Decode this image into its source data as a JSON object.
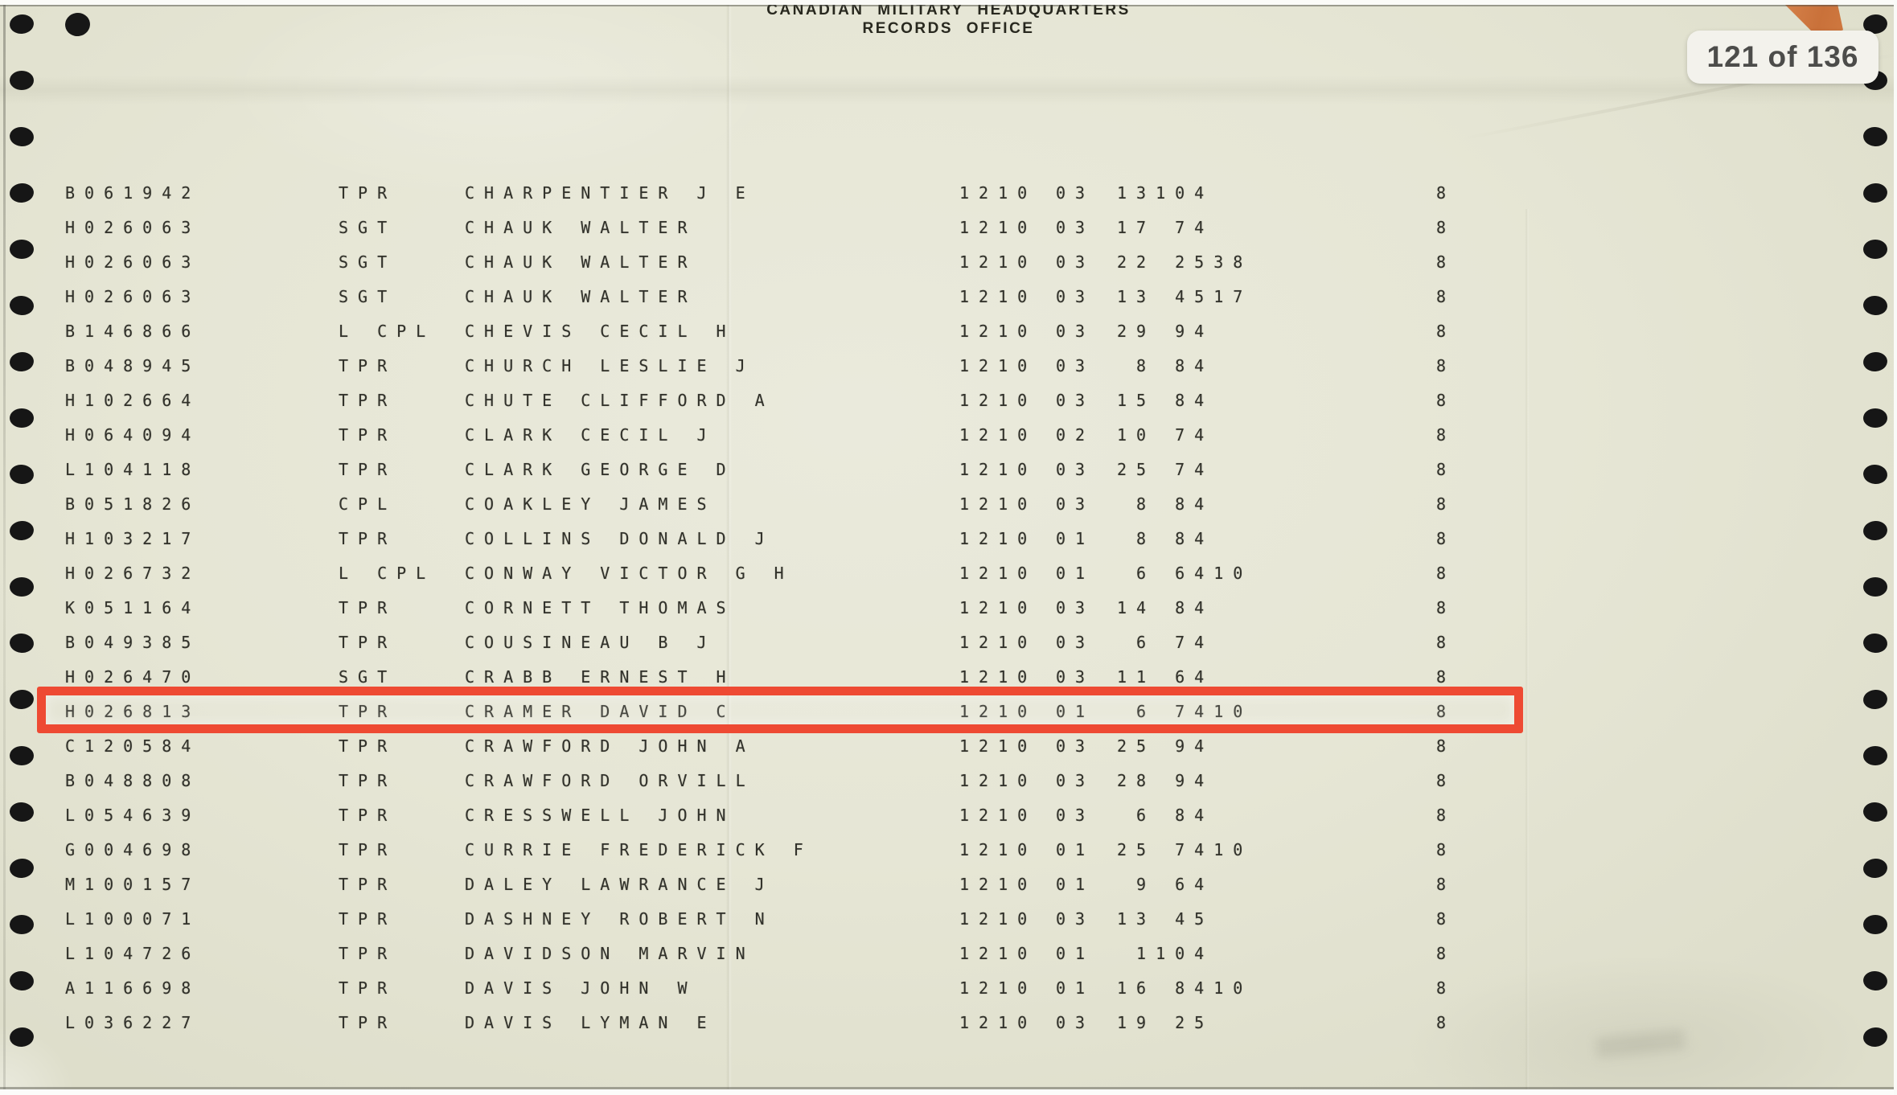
{
  "document": {
    "header_line1": "CANADIAN  MILITARY  HEADQUARTERS",
    "header_line2": "RECORDS  OFFICE"
  },
  "viewer": {
    "page_indicator": "121 of 136"
  },
  "colors": {
    "paper": "#e6e6d5",
    "ink": "#31312a",
    "highlight_red": "#ee4a33",
    "badge_bg": "#f3f2ec",
    "badge_text": "#4c4c4a",
    "corner_orange": "#cf7a41",
    "punch_hole": "#161616"
  },
  "table": {
    "highlighted_row_index": 15,
    "rows": [
      {
        "service_number": "B061942",
        "rank": "TPR",
        "name": "CHARPENTIER J E",
        "col1": "1210",
        "col2": "03",
        "col3": "13104",
        "col4": "8"
      },
      {
        "service_number": "H026063",
        "rank": "SGT",
        "name": "CHAUK WALTER",
        "col1": "1210",
        "col2": "03",
        "col3": "17 74",
        "col4": "8"
      },
      {
        "service_number": "H026063",
        "rank": "SGT",
        "name": "CHAUK WALTER",
        "col1": "1210",
        "col2": "03",
        "col3": "22 2538",
        "col4": "8"
      },
      {
        "service_number": "H026063",
        "rank": "SGT",
        "name": "CHAUK WALTER",
        "col1": "1210",
        "col2": "03",
        "col3": "13 4517",
        "col4": "8"
      },
      {
        "service_number": "B146866",
        "rank": "L CPL",
        "name": "CHEVIS CECIL H",
        "col1": "1210",
        "col2": "03",
        "col3": "29 94",
        "col4": "8"
      },
      {
        "service_number": "B048945",
        "rank": "TPR",
        "name": "CHURCH LESLIE J",
        "col1": "1210",
        "col2": "03",
        "col3": " 8 84",
        "col4": "8"
      },
      {
        "service_number": "H102664",
        "rank": "TPR",
        "name": "CHUTE CLIFFORD A",
        "col1": "1210",
        "col2": "03",
        "col3": "15 84",
        "col4": "8"
      },
      {
        "service_number": "H064094",
        "rank": "TPR",
        "name": "CLARK CECIL J",
        "col1": "1210",
        "col2": "02",
        "col3": "10 74",
        "col4": "8"
      },
      {
        "service_number": "L104118",
        "rank": "TPR",
        "name": "CLARK GEORGE D",
        "col1": "1210",
        "col2": "03",
        "col3": "25 74",
        "col4": "8"
      },
      {
        "service_number": "B051826",
        "rank": "CPL",
        "name": "COAKLEY JAMES",
        "col1": "1210",
        "col2": "03",
        "col3": " 8 84",
        "col4": "8"
      },
      {
        "service_number": "H103217",
        "rank": "TPR",
        "name": "COLLINS DONALD J",
        "col1": "1210",
        "col2": "01",
        "col3": " 8 84",
        "col4": "8"
      },
      {
        "service_number": "H026732",
        "rank": "L CPL",
        "name": "CONWAY VICTOR G H",
        "col1": "1210",
        "col2": "01",
        "col3": " 6 6410",
        "col4": "8"
      },
      {
        "service_number": "K051164",
        "rank": "TPR",
        "name": "CORNETT THOMAS",
        "col1": "1210",
        "col2": "03",
        "col3": "14 84",
        "col4": "8"
      },
      {
        "service_number": "B049385",
        "rank": "TPR",
        "name": "COUSINEAU B J",
        "col1": "1210",
        "col2": "03",
        "col3": " 6 74",
        "col4": "8"
      },
      {
        "service_number": "H026470",
        "rank": "SGT",
        "name": "CRABB ERNEST H",
        "col1": "1210",
        "col2": "03",
        "col3": "11 64",
        "col4": "8"
      },
      {
        "service_number": "H026813",
        "rank": "TPR",
        "name": "CRAMER DAVID C",
        "col1": "1210",
        "col2": "01",
        "col3": " 6 7410",
        "col4": "8"
      },
      {
        "service_number": "C120584",
        "rank": "TPR",
        "name": "CRAWFORD JOHN A",
        "col1": "1210",
        "col2": "03",
        "col3": "25 94",
        "col4": "8"
      },
      {
        "service_number": "B048808",
        "rank": "TPR",
        "name": "CRAWFORD ORVILL",
        "col1": "1210",
        "col2": "03",
        "col3": "28 94",
        "col4": "8"
      },
      {
        "service_number": "L054639",
        "rank": "TPR",
        "name": "CRESSWELL JOHN",
        "col1": "1210",
        "col2": "03",
        "col3": " 6 84",
        "col4": "8"
      },
      {
        "service_number": "G004698",
        "rank": "TPR",
        "name": "CURRIE FREDERICK F",
        "col1": "1210",
        "col2": "01",
        "col3": "25 7410",
        "col4": "8"
      },
      {
        "service_number": "M100157",
        "rank": "TPR",
        "name": "DALEY LAWRANCE J",
        "col1": "1210",
        "col2": "01",
        "col3": " 9 64",
        "col4": "8"
      },
      {
        "service_number": "L100071",
        "rank": "TPR",
        "name": "DASHNEY ROBERT N",
        "col1": "1210",
        "col2": "03",
        "col3": "13 45",
        "col4": "8"
      },
      {
        "service_number": "L104726",
        "rank": "TPR",
        "name": "DAVIDSON MARVIN",
        "col1": "1210",
        "col2": "01",
        "col3": " 1104",
        "col4": "8"
      },
      {
        "service_number": "A116698",
        "rank": "TPR",
        "name": "DAVIS JOHN W",
        "col1": "1210",
        "col2": "01",
        "col3": "16 8410",
        "col4": "8"
      },
      {
        "service_number": "L036227",
        "rank": "TPR",
        "name": "DAVIS LYMAN E",
        "col1": "1210",
        "col2": "03",
        "col3": "19 25",
        "col4": "8"
      }
    ]
  }
}
